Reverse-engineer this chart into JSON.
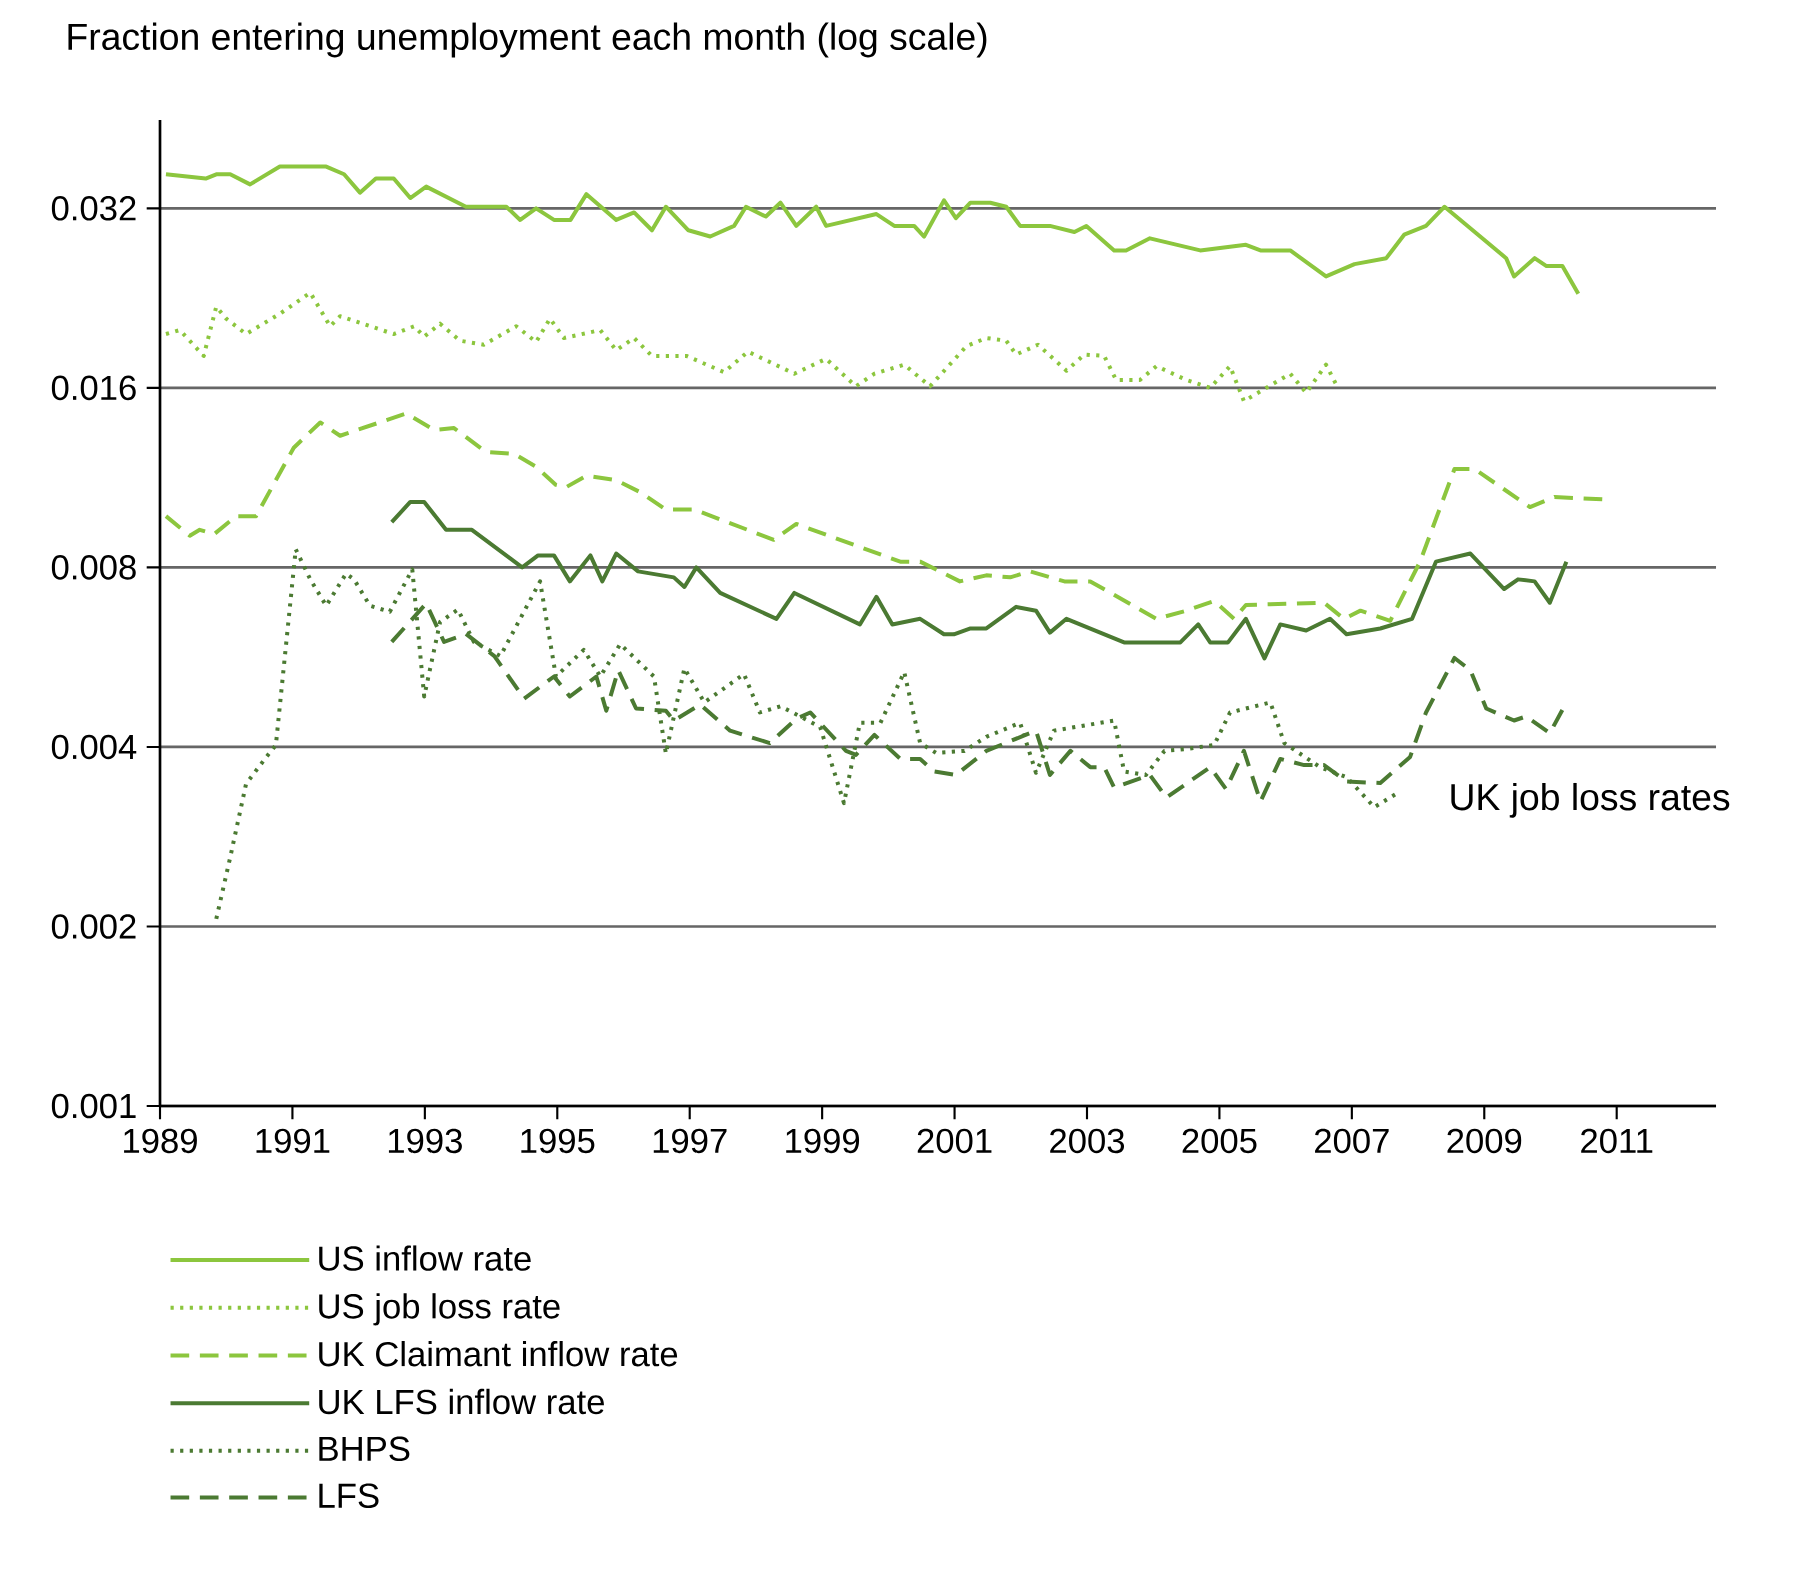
{
  "chart_data": {
    "type": "line",
    "title": "Fraction entering unemployment each month (log scale)",
    "log": "y",
    "grid": "y",
    "legend": "bottom",
    "marker": "none",
    "xlim": [
      1989,
      2012.5
    ],
    "ylim": [
      0.001,
      0.045
    ],
    "xticks": [
      1989,
      1991,
      1993,
      1995,
      1997,
      1999,
      2001,
      2003,
      2005,
      2007,
      2009,
      2011
    ],
    "yticks": [
      0.001,
      0.002,
      0.004,
      0.008,
      0.016,
      0.032
    ],
    "annotations": [
      "UK job loss rates"
    ],
    "series": [
      {
        "name": "US inflow rate",
        "color": "#8cc63e",
        "line_style": "solid",
        "x": [
          1989.09,
          1989.69,
          1989.85,
          1990.06,
          1990.36,
          1990.81,
          1991.51,
          1991.78,
          1992.02,
          1992.26,
          1992.53,
          1992.78,
          1993.02,
          1993.62,
          1994.23,
          1994.44,
          1994.68,
          1994.95,
          1995.2,
          1995.44,
          1995.89,
          1996.16,
          1996.43,
          1996.64,
          1996.98,
          1997.31,
          1997.67,
          1997.85,
          1998.15,
          1998.37,
          1998.61,
          1998.91,
          1999.06,
          1999.82,
          2000.09,
          2000.39,
          2000.54,
          2000.84,
          2001.02,
          2001.24,
          2001.54,
          2001.78,
          2001.99,
          2002.44,
          2002.81,
          2002.99,
          2003.41,
          2003.59,
          2003.95,
          2004.71,
          2005.4,
          2005.62,
          2006.07,
          2006.61,
          2007.04,
          2007.52,
          2007.79,
          2008.12,
          2008.4,
          2009.33,
          2009.45,
          2009.76,
          2009.94,
          2010.18,
          2010.42
        ],
        "values": [
          0.0365,
          0.0359,
          0.0365,
          0.0365,
          0.0351,
          0.0376,
          0.0376,
          0.0365,
          0.034,
          0.0359,
          0.0359,
          0.0333,
          0.0348,
          0.0322,
          0.0322,
          0.0306,
          0.032,
          0.0306,
          0.0306,
          0.0338,
          0.0306,
          0.0315,
          0.0294,
          0.0322,
          0.0294,
          0.0287,
          0.0299,
          0.0322,
          0.031,
          0.0327,
          0.0299,
          0.0322,
          0.0299,
          0.0313,
          0.0299,
          0.0299,
          0.0287,
          0.033,
          0.0308,
          0.0327,
          0.0327,
          0.0322,
          0.0299,
          0.0299,
          0.0292,
          0.0299,
          0.0272,
          0.0272,
          0.0285,
          0.0272,
          0.0278,
          0.0272,
          0.0272,
          0.0246,
          0.0258,
          0.0264,
          0.0289,
          0.0299,
          0.0322,
          0.0264,
          0.0246,
          0.0264,
          0.0256,
          0.0256,
          0.023
        ]
      },
      {
        "name": "US job loss rate",
        "color": "#8cc63e",
        "line_style": "dotted",
        "x": [
          1989.09,
          1989.3,
          1989.66,
          1989.85,
          1990.0,
          1990.3,
          1990.81,
          1991.27,
          1991.57,
          1991.72,
          1992.53,
          1992.84,
          1992.99,
          1993.23,
          1993.53,
          1993.89,
          1994.38,
          1994.68,
          1994.89,
          1995.1,
          1995.65,
          1995.89,
          1996.16,
          1996.43,
          1996.95,
          1997.52,
          1997.88,
          1998.58,
          1999.06,
          1999.51,
          1999.79,
          2000.24,
          2000.63,
          2001.18,
          2001.48,
          2001.78,
          2001.93,
          2002.26,
          2002.69,
          2002.96,
          2003.26,
          2003.44,
          2003.8,
          2004.05,
          2004.5,
          2004.86,
          2005.16,
          2005.37,
          2005.83,
          2006.07,
          2006.31,
          2006.61,
          2006.79
        ],
        "values": [
          0.0197,
          0.02,
          0.0181,
          0.0219,
          0.0209,
          0.0197,
          0.0213,
          0.0231,
          0.0203,
          0.0211,
          0.0197,
          0.0203,
          0.0195,
          0.0205,
          0.0192,
          0.0189,
          0.0203,
          0.0191,
          0.0209,
          0.0194,
          0.02,
          0.0185,
          0.0194,
          0.0181,
          0.0181,
          0.017,
          0.0184,
          0.0169,
          0.0179,
          0.0161,
          0.0169,
          0.0175,
          0.0161,
          0.0188,
          0.0194,
          0.0192,
          0.0182,
          0.0189,
          0.0171,
          0.0182,
          0.0181,
          0.0165,
          0.0165,
          0.0174,
          0.0165,
          0.016,
          0.0174,
          0.0152,
          0.0163,
          0.0169,
          0.0157,
          0.0175,
          0.016
        ]
      },
      {
        "name": "UK Claimant inflow rate",
        "color": "#8cc63e",
        "line_style": "dashed",
        "x": [
          1989.09,
          1989.45,
          1989.6,
          1989.82,
          1990.15,
          1990.45,
          1991.02,
          1991.42,
          1991.72,
          1992.72,
          1993.14,
          1993.44,
          1993.92,
          1994.35,
          1994.68,
          1994.98,
          1995.13,
          1995.44,
          1995.89,
          1996.25,
          1996.64,
          1997.07,
          1998.27,
          1998.61,
          2000.18,
          2000.48,
          2001.08,
          2001.48,
          2001.84,
          2002.14,
          2002.66,
          2003.05,
          2004.05,
          2004.5,
          2004.92,
          2005.22,
          2005.4,
          2006.58,
          2006.88,
          2007.13,
          2007.58,
          2008.03,
          2008.55,
          2008.85,
          2009.69,
          2010.06,
          2010.81
        ],
        "values": [
          0.00975,
          0.00904,
          0.00925,
          0.0091,
          0.00975,
          0.00975,
          0.0127,
          0.014,
          0.0133,
          0.0145,
          0.0136,
          0.0137,
          0.0125,
          0.0124,
          0.0118,
          0.011,
          0.0109,
          0.0114,
          0.0112,
          0.0107,
          0.01,
          0.01,
          0.0089,
          0.00946,
          0.00818,
          0.00818,
          0.00758,
          0.00776,
          0.0077,
          0.00788,
          0.00758,
          0.00758,
          0.00656,
          0.00677,
          0.00703,
          0.00656,
          0.00692,
          0.00698,
          0.00656,
          0.00677,
          0.00651,
          0.00818,
          0.0117,
          0.0117,
          0.0101,
          0.0105,
          0.0104
        ]
      },
      {
        "name": "UK LFS inflow rate",
        "color": "#4b7a32",
        "line_style": "solid",
        "x": [
          1992.5,
          1992.78,
          1992.99,
          1993.32,
          1993.71,
          1994.47,
          1994.71,
          1994.95,
          1995.19,
          1995.5,
          1995.68,
          1995.89,
          1996.22,
          1996.76,
          1996.92,
          1997.1,
          1997.46,
          1998.31,
          1998.58,
          1999.57,
          1999.82,
          2000.06,
          2000.48,
          2000.84,
          2000.99,
          2001.24,
          2001.48,
          2001.93,
          2002.23,
          2002.44,
          2002.69,
          2003.56,
          2004.41,
          2004.68,
          2004.86,
          2005.13,
          2005.4,
          2005.68,
          2005.92,
          2006.31,
          2006.67,
          2006.92,
          2007.43,
          2007.91,
          2008.27,
          2008.79,
          2009.3,
          2009.51,
          2009.76,
          2009.99,
          2010.24
        ],
        "values": [
          0.00953,
          0.0103,
          0.0103,
          0.00925,
          0.00925,
          0.008,
          0.00838,
          0.00838,
          0.00758,
          0.00838,
          0.00758,
          0.00844,
          0.00788,
          0.0077,
          0.00742,
          0.008,
          0.00725,
          0.00656,
          0.00725,
          0.00642,
          0.00714,
          0.00642,
          0.00656,
          0.00618,
          0.00618,
          0.00632,
          0.00632,
          0.00687,
          0.00677,
          0.00622,
          0.00656,
          0.00599,
          0.00599,
          0.00642,
          0.00599,
          0.00599,
          0.00656,
          0.00563,
          0.00642,
          0.00627,
          0.00656,
          0.00618,
          0.00632,
          0.00656,
          0.00818,
          0.00844,
          0.00736,
          0.00764,
          0.00758,
          0.00698,
          0.00818
        ]
      },
      {
        "name": "BHPS",
        "color": "#4b7a32",
        "line_style": "dotted",
        "x": [
          1989.85,
          1990.06,
          1990.3,
          1990.6,
          1990.75,
          1991.05,
          1991.27,
          1991.51,
          1991.81,
          1991.93,
          1992.17,
          1992.47,
          1992.81,
          1992.99,
          1993.23,
          1993.5,
          1993.74,
          1994.14,
          1994.74,
          1994.98,
          1995.4,
          1995.65,
          1995.95,
          1996.46,
          1996.64,
          1996.92,
          1997.22,
          1997.82,
          1998.06,
          1998.37,
          1998.67,
          1998.97,
          1999.33,
          1999.57,
          1999.88,
          2000.24,
          2000.48,
          2000.72,
          2001.15,
          2001.48,
          2001.99,
          2002.23,
          2002.5,
          2003.41,
          2003.56,
          2003.89,
          2004.17,
          2004.5,
          2004.92,
          2005.16,
          2005.77,
          2005.98,
          2006.52,
          2006.92,
          2007.34,
          2007.73
        ],
        "values": [
          0.00206,
          0.00261,
          0.00347,
          0.00384,
          0.00403,
          0.00858,
          0.00764,
          0.0069,
          0.00781,
          0.00764,
          0.0069,
          0.00674,
          0.00794,
          0.00486,
          0.00648,
          0.0068,
          0.006,
          0.00568,
          0.00758,
          0.00525,
          0.00582,
          0.00525,
          0.00595,
          0.00525,
          0.0039,
          0.00542,
          0.00475,
          0.0053,
          0.00457,
          0.00468,
          0.0045,
          0.00432,
          0.00322,
          0.00439,
          0.00439,
          0.00534,
          0.00406,
          0.00391,
          0.00394,
          0.00416,
          0.00439,
          0.00362,
          0.00426,
          0.00443,
          0.00364,
          0.00359,
          0.00394,
          0.00397,
          0.00403,
          0.00457,
          0.00475,
          0.00406,
          0.0037,
          0.00356,
          0.00317,
          0.00337
        ]
      },
      {
        "name": "LFS",
        "color": "#4b7a32",
        "line_style": "dashed",
        "x": [
          1992.5,
          1993.02,
          1993.29,
          1993.62,
          1994.05,
          1994.5,
          1994.95,
          1995.19,
          1995.59,
          1995.74,
          1995.92,
          1996.19,
          1996.64,
          1996.76,
          1997.16,
          1997.61,
          1998.21,
          1998.61,
          1998.82,
          1999.36,
          1999.51,
          1999.79,
          2000.18,
          2000.48,
          2000.69,
          2001.02,
          2001.48,
          2002.23,
          2002.44,
          2002.75,
          2003.05,
          2003.26,
          2003.41,
          2003.95,
          2004.2,
          2004.86,
          2005.1,
          2005.37,
          2005.62,
          2005.92,
          2006.28,
          2006.58,
          2006.92,
          2007.43,
          2007.88,
          2008.12,
          2008.55,
          2008.79,
          2009.03,
          2009.45,
          2009.63,
          2009.99,
          2010.24
        ],
        "values": [
          0.006,
          0.00696,
          0.006,
          0.00619,
          0.00568,
          0.00482,
          0.00525,
          0.00486,
          0.00525,
          0.0046,
          0.00538,
          0.00464,
          0.0046,
          0.00443,
          0.00471,
          0.00426,
          0.00406,
          0.00446,
          0.00457,
          0.00394,
          0.00388,
          0.00419,
          0.00382,
          0.00382,
          0.00364,
          0.00359,
          0.00394,
          0.00426,
          0.00359,
          0.00394,
          0.0037,
          0.0037,
          0.00342,
          0.00359,
          0.00329,
          0.0037,
          0.0034,
          0.00394,
          0.00324,
          0.00382,
          0.00373,
          0.00373,
          0.0035,
          0.00348,
          0.00385,
          0.00457,
          0.00564,
          0.00538,
          0.00464,
          0.00443,
          0.0045,
          0.00422,
          0.00475
        ]
      }
    ]
  }
}
